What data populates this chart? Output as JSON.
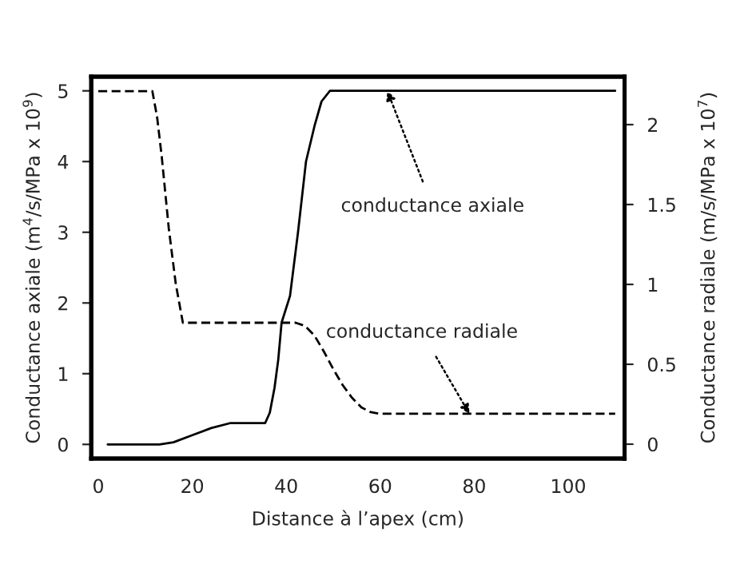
{
  "chart_data": {
    "type": "line",
    "xlabel": "Distance à l’apex (cm)",
    "ylabel": "Conductance axiale (m$^{4}$/s/MPa x 10$^{9}$)",
    "y2label": "Conductance radiale (m/s/MPa x 10$^{7}$)",
    "xlim": [
      -1.5,
      112
    ],
    "xticks": [
      0,
      20,
      40,
      60,
      80,
      100
    ],
    "ylim": [
      -0.2,
      5.2
    ],
    "yticks": [
      0,
      1,
      2,
      3,
      4,
      5
    ],
    "y2lim": [
      -0.09,
      2.3
    ],
    "y2ticks": [
      0,
      0.5,
      1,
      1.5,
      2
    ],
    "grid": false,
    "legend": false,
    "marker": "none",
    "series": [
      {
        "color": "#000000",
        "line_style": "solid",
        "x": [
          2,
          13,
          16,
          20,
          24,
          28,
          35.5,
          36.5,
          37.5,
          38.3,
          39,
          40.8,
          42.5,
          44.2,
          46,
          47.5,
          49.3,
          110
        ],
        "values": [
          0,
          0,
          0.03,
          0.13,
          0.23,
          0.3,
          0.3,
          0.45,
          0.8,
          1.2,
          1.72,
          2.1,
          3,
          4,
          4.5,
          4.85,
          5,
          5
        ]
      },
      {
        "color": "#000000",
        "line_style": "dashed",
        "axis": "y2",
        "x": [
          0,
          11.5,
          12.5,
          13.5,
          15,
          16.5,
          18,
          42,
          44,
          46,
          48,
          50,
          52,
          54,
          56,
          58,
          60,
          110
        ],
        "values": [
          2.21,
          2.21,
          2.05,
          1.8,
          1.35,
          1.0,
          0.76,
          0.76,
          0.74,
          0.68,
          0.58,
          0.47,
          0.37,
          0.29,
          0.23,
          0.2,
          0.19,
          0.19
        ]
      }
    ],
    "annotations": [
      {
        "text": "conductance axiale",
        "x": 61.5,
        "y": 5
      },
      {
        "text": "conductance radiale",
        "x": 79,
        "y": 0.43
      }
    ]
  }
}
